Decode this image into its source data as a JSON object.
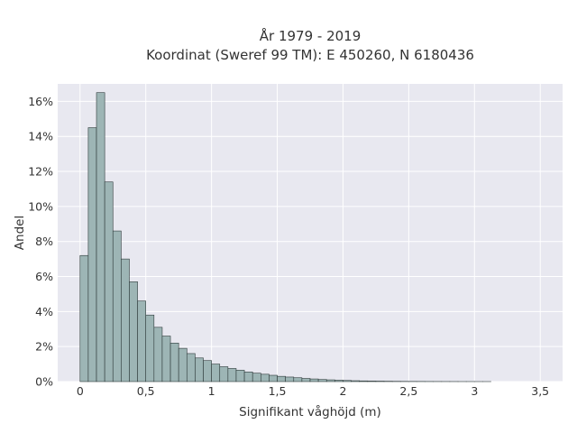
{
  "chart_data": {
    "type": "bar",
    "title_line1": "År 1979 - 2019",
    "title_line2": "Koordinat (Sweref 99 TM): E 450260, N 6180436",
    "xlabel": "Signifikant våghöjd (m)",
    "ylabel": "Andel",
    "xlim": [
      -0.17,
      3.67
    ],
    "ylim": [
      0,
      17.0
    ],
    "x_ticks": [
      0,
      0.5,
      1,
      1.5,
      2,
      2.5,
      3,
      3.5
    ],
    "x_tick_labels": [
      "0",
      "0,5",
      "1",
      "1,5",
      "2",
      "2,5",
      "3",
      "3,5"
    ],
    "y_ticks": [
      0,
      2,
      4,
      6,
      8,
      10,
      12,
      14,
      16
    ],
    "y_tick_labels": [
      "0%",
      "2%",
      "4%",
      "6%",
      "8%",
      "10%",
      "12%",
      "14%",
      "16%"
    ],
    "grid": true,
    "bin_width": 0.0625,
    "bin_start": 0,
    "values": [
      7.2,
      14.5,
      16.5,
      11.4,
      8.6,
      7.0,
      5.7,
      4.6,
      3.8,
      3.1,
      2.6,
      2.2,
      1.9,
      1.6,
      1.35,
      1.2,
      1.0,
      0.85,
      0.75,
      0.65,
      0.55,
      0.48,
      0.42,
      0.36,
      0.3,
      0.26,
      0.22,
      0.18,
      0.15,
      0.12,
      0.1,
      0.08,
      0.065,
      0.05,
      0.04,
      0.03,
      0.025,
      0.02,
      0.015,
      0.012,
      0.01,
      0.008,
      0.006,
      0.005,
      0.004,
      0.003,
      0.002,
      0.002,
      0.001,
      0.001
    ],
    "colors": {
      "bar_fill": "#9db5b5",
      "bar_stroke": "#2e3a3a",
      "plot_bg": "#e8e8f0",
      "grid": "#ffffff",
      "text": "#333333"
    }
  }
}
